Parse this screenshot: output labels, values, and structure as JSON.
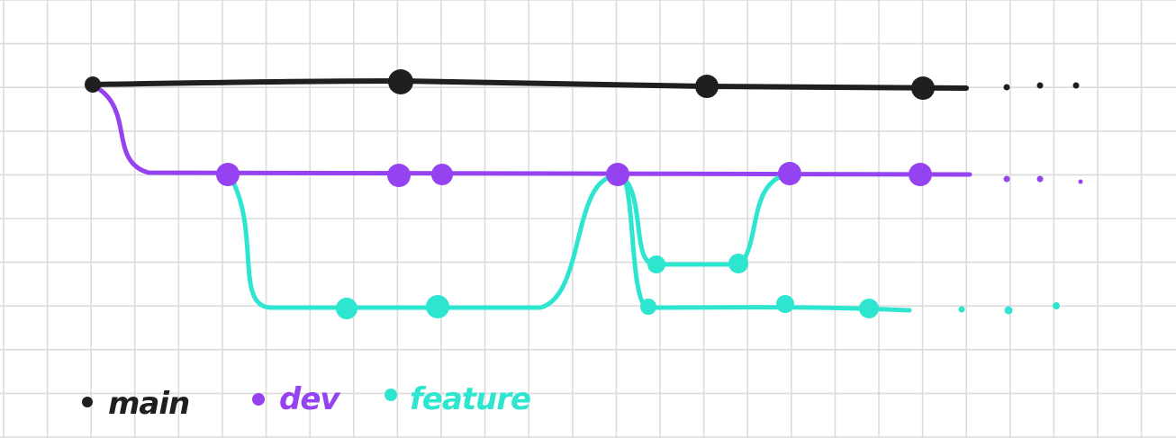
{
  "colors": {
    "background": "#ffffff",
    "grid": "#dcdcdc",
    "main": "#1f1f1f",
    "dev": "#9542f0",
    "feature": "#2ee6d0"
  },
  "branches": [
    {
      "id": "main",
      "label": "main"
    },
    {
      "id": "dev",
      "label": "dev"
    },
    {
      "id": "feature",
      "label": "feature"
    }
  ],
  "legend": {
    "main": "main",
    "dev": "dev",
    "feature": "feature"
  }
}
